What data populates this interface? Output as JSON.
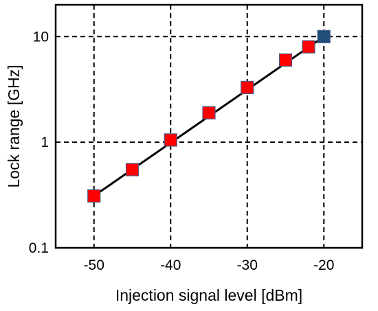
{
  "chart_data": {
    "type": "scatter",
    "title": "",
    "xlabel": "Injection signal level [dBm]",
    "ylabel": "Lock range [GHz]",
    "xlim": [
      -55,
      -15
    ],
    "ylim": [
      0.1,
      20
    ],
    "yscale": "log",
    "grid": true,
    "grid_style": "dashed",
    "xticks": [
      -50,
      -40,
      -30,
      -20
    ],
    "xtick_labels": [
      "-50",
      "-40",
      "-30",
      "-20"
    ],
    "yticks": [
      0.1,
      1,
      10
    ],
    "ytick_labels": [
      "0.1",
      "1",
      "10"
    ],
    "x": [
      -50,
      -45,
      -40,
      -35,
      -30,
      -25,
      -22,
      -20
    ],
    "y": [
      0.31,
      0.55,
      1.05,
      1.9,
      3.3,
      6.0,
      8.0,
      10.0
    ],
    "point_colors": [
      "#ff0000",
      "#ff0000",
      "#ff0000",
      "#ff0000",
      "#ff0000",
      "#ff0000",
      "#ff0000",
      "#1f4e79"
    ],
    "fit_line": {
      "x": [
        -50,
        -20
      ],
      "y": [
        0.31,
        10.0
      ],
      "color": "#000000"
    }
  }
}
